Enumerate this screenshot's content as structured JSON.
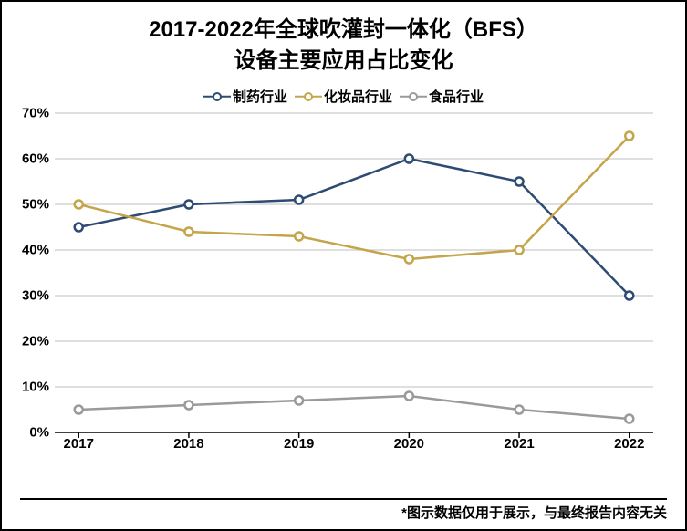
{
  "title_line1": "2017-2022年全球吹灌封一体化（BFS）",
  "title_line2": "设备主要应用占比变化",
  "title_fontsize": 24,
  "legend_fontsize": 15,
  "axis_fontsize": 15,
  "footnote_fontsize": 15,
  "footnote": "*图示数据仅用于展示，与最终报告内容无关",
  "chart": {
    "type": "line",
    "categories": [
      "2017",
      "2018",
      "2019",
      "2020",
      "2021",
      "2022"
    ],
    "ylim": [
      0,
      70
    ],
    "ytick_step": 10,
    "y_suffix": "%",
    "grid_color": "#bfbfbf",
    "axis_color": "#000000",
    "background_color": "#ffffff",
    "marker_size": 9,
    "marker_fill": "#ffffff",
    "line_width": 2.5,
    "marker_border_width": 2.5,
    "series": [
      {
        "name": "制药行业",
        "color": "#2e4b73",
        "values": [
          45,
          50,
          51,
          60,
          55,
          30
        ]
      },
      {
        "name": "化妆品行业",
        "color": "#c5a54a",
        "values": [
          50,
          44,
          43,
          38,
          40,
          65
        ]
      },
      {
        "name": "食品行业",
        "color": "#9a9a9a",
        "values": [
          5,
          6,
          7,
          8,
          5,
          3
        ]
      }
    ]
  }
}
